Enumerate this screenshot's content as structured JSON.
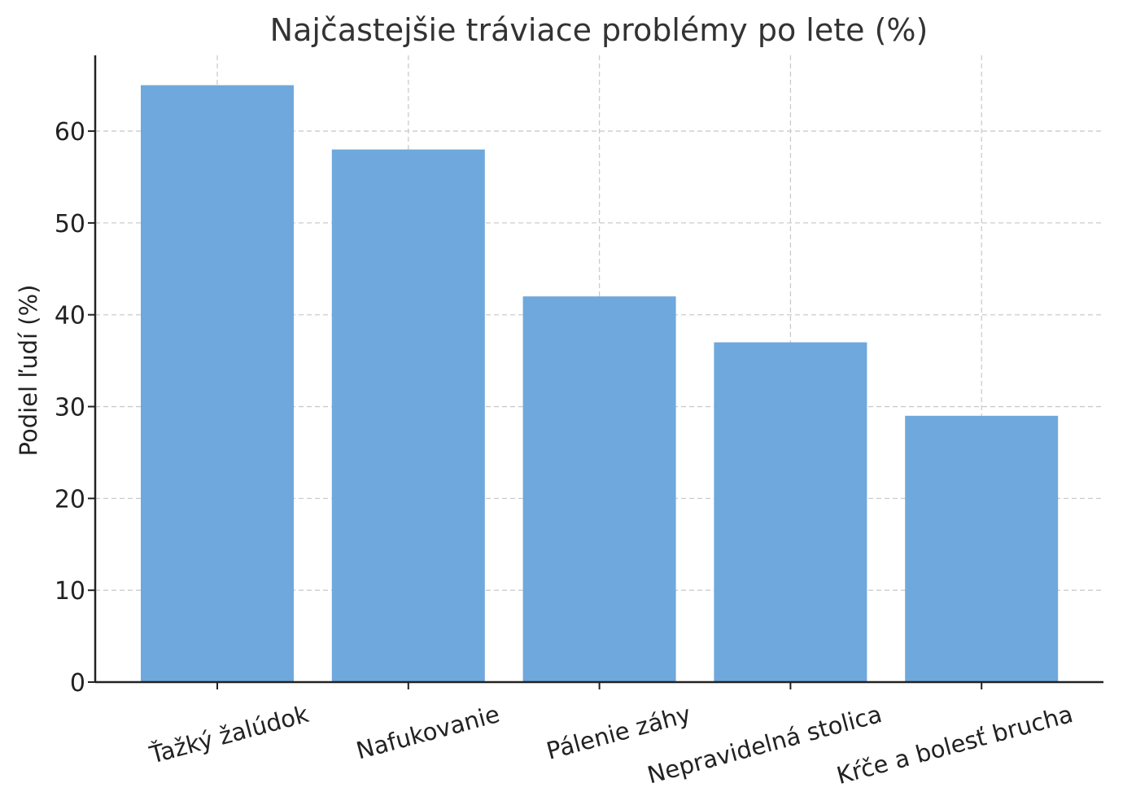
{
  "chart_data": {
    "type": "bar",
    "title": "Najčastejšie tráviace problémy po lete (%)",
    "xlabel": "",
    "ylabel": "Podiel ľudí (%)",
    "categories": [
      "Ťažký žalúdok",
      "Nafukovanie",
      "Pálenie záhy",
      "Nepravidelná stolica",
      "Kŕče a bolesť brucha"
    ],
    "values": [
      65,
      58,
      42,
      37,
      29
    ],
    "ylim": [
      0,
      68.25
    ],
    "yticks": [
      0,
      10,
      20,
      30,
      40,
      50,
      60
    ],
    "grid": true,
    "bar_color": "#6fa8dc"
  }
}
